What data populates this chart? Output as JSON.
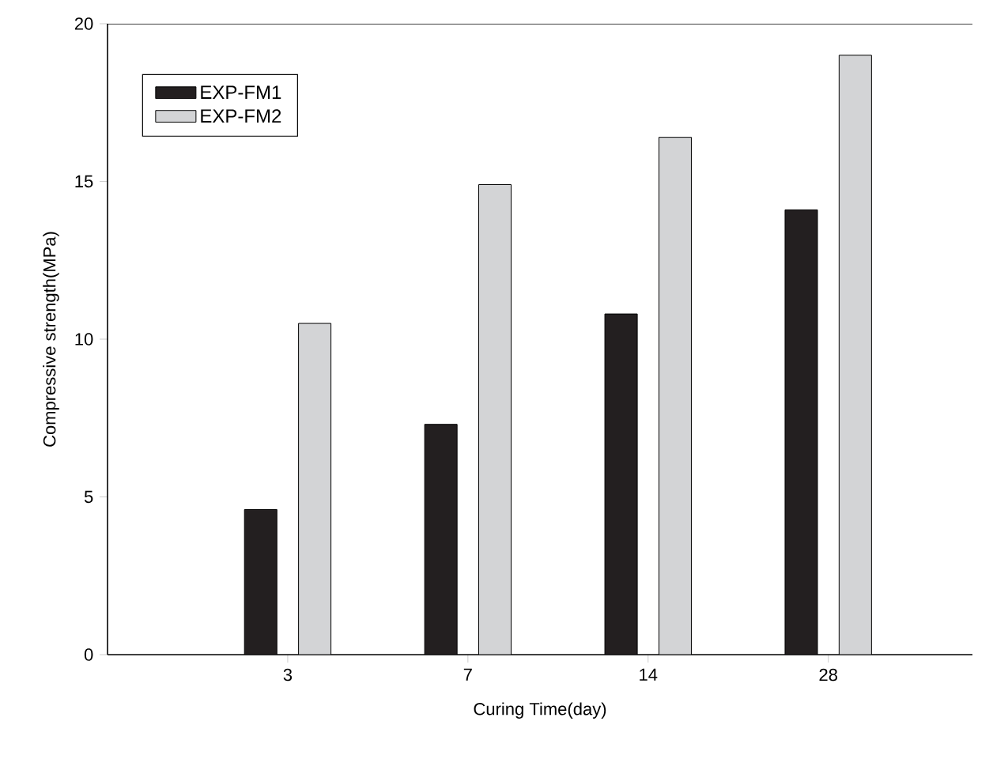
{
  "chart_data": {
    "type": "bar",
    "xlabel": "Curing Time(day)",
    "ylabel": "Compressive strength(MPa)",
    "categories": [
      "3",
      "7",
      "14",
      "28"
    ],
    "series": [
      {
        "name": "EXP-FM1",
        "color": "#231f20",
        "values": [
          4.6,
          7.3,
          10.8,
          14.1
        ]
      },
      {
        "name": "EXP-FM2",
        "color": "#d3d4d6",
        "values": [
          10.5,
          14.9,
          16.4,
          19.0
        ]
      }
    ],
    "ylim": [
      0,
      20
    ],
    "yticks": [
      0,
      5,
      10,
      15,
      20
    ],
    "legend": "top left"
  }
}
